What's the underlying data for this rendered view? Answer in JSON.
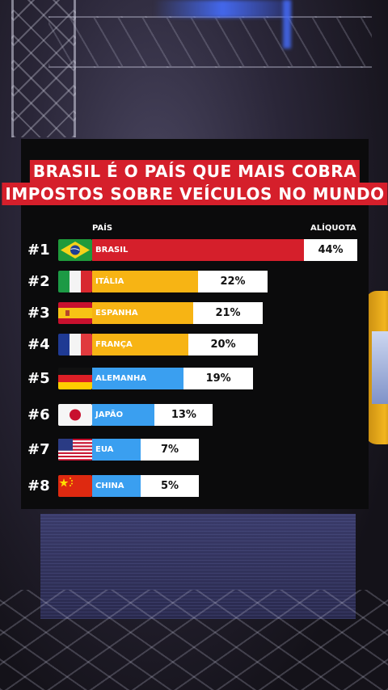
{
  "title_line_1": "BRASIL É O PAÍS QUE MAIS COBRA",
  "title_line_2": "IMPOSTOS SOBRE VEÍCULOS NO MUNDO",
  "colors": {
    "title_bg": "#d51f2b",
    "brasil_bar": "#d51f2b",
    "europe_bar": "#f7b414",
    "other_bar": "#3a9ff0",
    "panel_bg": "#0b0b0c"
  },
  "chart_data": {
    "type": "bar",
    "orientation": "horizontal",
    "xlabel": "PAÍS",
    "ylabel": "ALÍQUOTA",
    "categories": [
      "BRASIL",
      "ITÁLIA",
      "ESPANHA",
      "FRANÇA",
      "ALEMANHA",
      "JAPÃO",
      "EUA",
      "CHINA"
    ],
    "ranks": [
      "#1",
      "#2",
      "#3",
      "#4",
      "#5",
      "#6",
      "#7",
      "#8"
    ],
    "values": [
      44,
      22,
      21,
      20,
      19,
      13,
      7,
      5
    ],
    "value_labels": [
      "44%",
      "22%",
      "21%",
      "20%",
      "19%",
      "13%",
      "7%",
      "5%"
    ],
    "flags": [
      "brazil-flag-icon",
      "italy-flag-icon",
      "spain-flag-icon",
      "france-flag-icon",
      "germany-flag-icon",
      "japan-flag-icon",
      "usa-flag-icon",
      "china-flag-icon"
    ],
    "bar_colors": [
      "#d51f2b",
      "#f7b414",
      "#f7b414",
      "#f7b414",
      "#3a9ff0",
      "#3a9ff0",
      "#3a9ff0",
      "#3a9ff0"
    ]
  }
}
